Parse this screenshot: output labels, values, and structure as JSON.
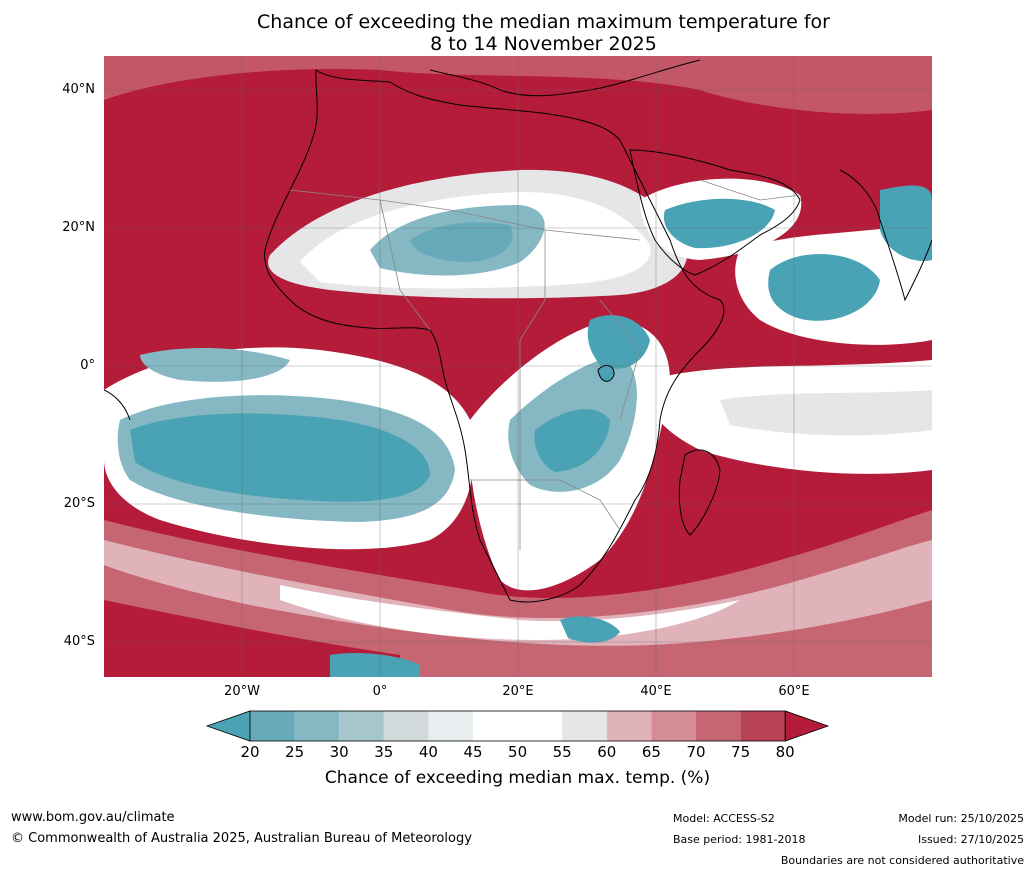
{
  "title": {
    "line1": "Chance of exceeding the median maximum temperature for",
    "line2": "8 to 14 November 2025"
  },
  "axes": {
    "lat_labels": [
      "40°N",
      "20°N",
      "0°",
      "20°S",
      "40°S"
    ],
    "lon_labels": [
      "20°W",
      "0°",
      "20°E",
      "40°E",
      "60°E"
    ]
  },
  "colorbar": {
    "ticks": [
      "20",
      "25",
      "30",
      "35",
      "40",
      "45",
      "50",
      "55",
      "60",
      "65",
      "70",
      "75",
      "80"
    ],
    "colors": [
      "#4aa3b5",
      "#66a9b8",
      "#86b8c4",
      "#a6c6cb",
      "#d2d9db",
      "#e8edef",
      "#ffffff",
      "#ffffff",
      "#e6e6e8",
      "#e0b3ba",
      "#d48d95",
      "#c76673",
      "#b94455",
      "#b41c3a"
    ],
    "title": "Chance of exceeding median max. temp. (%)"
  },
  "footer": {
    "url": "www.bom.gov.au/climate",
    "copyright": "© Commonwealth of Australia 2025, Australian Bureau of Meteorology",
    "model": "Model: ACCESS-S2",
    "base_period": "Base period: 1981-2018",
    "model_run": "Model run: 25/10/2025",
    "issued": "Issued: 27/10/2025",
    "disclaimer": "Boundaries are not considered authoritative"
  },
  "map_colors": {
    "ocean_hot": "#b41c3a",
    "ocean_warm": "#c76673",
    "neutral": "#ffffff",
    "light_grey": "#e6e6e8",
    "cool": "#86b8c4",
    "cold": "#4aa3b5"
  }
}
